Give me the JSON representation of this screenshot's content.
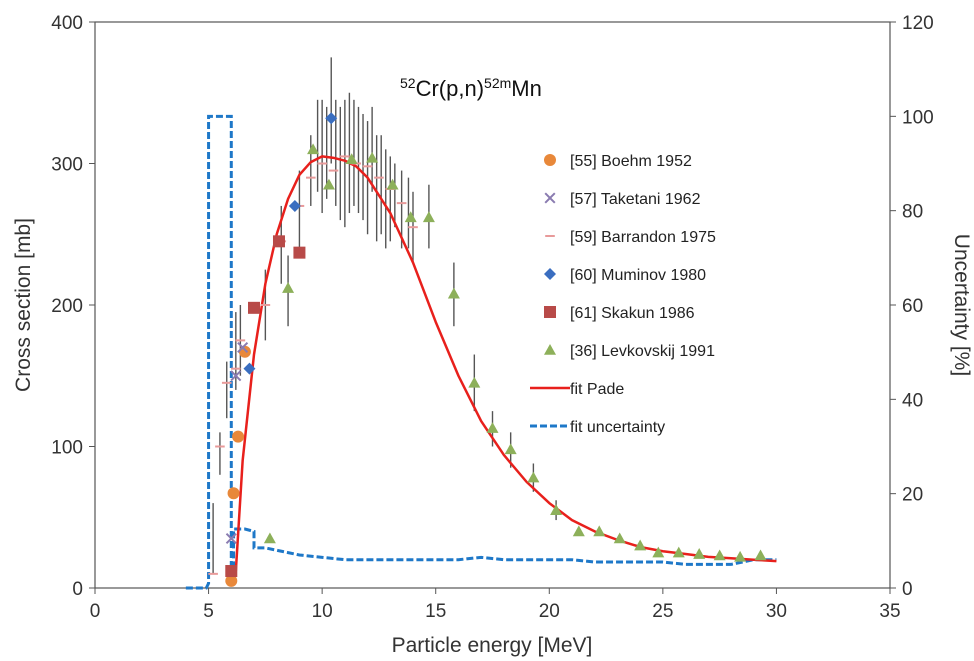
{
  "chart_data": {
    "type": "scatter",
    "title_parts": [
      {
        "text": "52",
        "sup": true
      },
      {
        "text": "Cr(p,n)",
        "sup": false
      },
      {
        "text": "52m",
        "sup": true
      },
      {
        "text": "Mn",
        "sup": false
      }
    ],
    "xlabel": "Particle  energy [MeV]",
    "ylabel": "Cross section [mb]",
    "y2label": "Uncertainty [%]",
    "xlim": [
      0,
      35
    ],
    "ylim": [
      0,
      400
    ],
    "y2lim": [
      0,
      120
    ],
    "xticks": [
      "0",
      "5",
      "10",
      "15",
      "20",
      "25",
      "30",
      "35"
    ],
    "yticks": [
      "0",
      "100",
      "200",
      "300",
      "400"
    ],
    "y2ticks": [
      "0",
      "20",
      "40",
      "60",
      "80",
      "100",
      "120"
    ],
    "grid": false,
    "legend_position": "right",
    "colors": {
      "boehm": "#E8883A",
      "taketani": "#8A7BB0",
      "barrandon": "#E89A9A",
      "muminov": "#3A6EC0",
      "skakun": "#B84A48",
      "levkovskij": "#8DB05A",
      "fit": "#E8201C",
      "uncertainty": "#1E78C8",
      "errorbar": "#555555"
    },
    "series": [
      {
        "name": "[55] Boehm 1952",
        "key": "boehm",
        "marker": "circle",
        "points": [
          [
            6.0,
            5
          ],
          [
            6.1,
            67
          ],
          [
            6.3,
            107
          ],
          [
            6.6,
            167
          ]
        ]
      },
      {
        "name": "[57] Taketani 1962",
        "key": "taketani",
        "marker": "x",
        "points": [
          [
            6.0,
            35
          ],
          [
            6.2,
            150
          ],
          [
            6.5,
            170
          ]
        ]
      },
      {
        "name": "[59] Barrandon 1975",
        "key": "barrandon",
        "marker": "dash",
        "points": [
          [
            5.2,
            10
          ],
          [
            5.5,
            100
          ],
          [
            5.8,
            145
          ],
          [
            6.2,
            155
          ],
          [
            6.4,
            175
          ],
          [
            7.5,
            200
          ],
          [
            8.2,
            245
          ],
          [
            9.0,
            270
          ],
          [
            9.5,
            290
          ],
          [
            10.0,
            300
          ],
          [
            10.5,
            295
          ],
          [
            11.0,
            305
          ],
          [
            11.5,
            300
          ],
          [
            12.0,
            298
          ],
          [
            12.5,
            290
          ],
          [
            13.0,
            282
          ],
          [
            13.5,
            272
          ],
          [
            14.0,
            255
          ]
        ]
      },
      {
        "name": "[60] Muminov 1980",
        "key": "muminov",
        "marker": "diamond",
        "points": [
          [
            6.8,
            155
          ],
          [
            8.8,
            270
          ],
          [
            10.4,
            332
          ]
        ]
      },
      {
        "name": "[61] Skakun 1986",
        "key": "skakun",
        "marker": "square",
        "points": [
          [
            6.0,
            12
          ],
          [
            7.0,
            198
          ],
          [
            8.1,
            245
          ],
          [
            9.0,
            237
          ]
        ]
      },
      {
        "name": "[36] Levkovskij 1991",
        "key": "levkovskij",
        "marker": "triangle",
        "points": [
          [
            7.7,
            35
          ],
          [
            8.5,
            212
          ],
          [
            9.6,
            310
          ],
          [
            10.3,
            285
          ],
          [
            11.3,
            303
          ],
          [
            12.2,
            304
          ],
          [
            13.1,
            285
          ],
          [
            13.9,
            262
          ],
          [
            14.7,
            262
          ],
          [
            15.8,
            208
          ],
          [
            16.7,
            145
          ],
          [
            17.5,
            113
          ],
          [
            18.3,
            98
          ],
          [
            19.3,
            78
          ],
          [
            20.3,
            55
          ],
          [
            21.3,
            40
          ],
          [
            22.2,
            40
          ],
          [
            23.1,
            35
          ],
          [
            24.0,
            30
          ],
          [
            24.8,
            25
          ],
          [
            25.7,
            25
          ],
          [
            26.6,
            24
          ],
          [
            27.5,
            23
          ],
          [
            28.4,
            22
          ],
          [
            29.3,
            23
          ]
        ]
      }
    ],
    "fit": {
      "name": "fit Pade",
      "key": "fit",
      "x": [
        6.2,
        6.5,
        7,
        7.5,
        8,
        8.5,
        9,
        9.5,
        10,
        10.5,
        11,
        11.5,
        12,
        13,
        14,
        15,
        16,
        17,
        18,
        19,
        20,
        21,
        22,
        23,
        24,
        25,
        26,
        27,
        28,
        29,
        30
      ],
      "y": [
        12,
        90,
        165,
        215,
        250,
        275,
        292,
        301,
        305,
        304,
        302,
        298,
        290,
        265,
        230,
        188,
        150,
        118,
        94,
        75,
        60,
        48,
        40,
        34,
        29,
        26,
        24,
        22,
        21,
        20,
        19
      ]
    },
    "uncertainty": {
      "name": "fit uncertainty",
      "key": "uncertainty",
      "x": [
        4.0,
        4.5,
        4.9,
        5.0,
        5.0,
        5.9,
        5.9,
        6.0,
        6.0,
        6.1,
        6.1,
        6.6,
        6.6,
        7.0,
        7.0,
        7.5,
        8.0,
        8.5,
        9.0,
        10.0,
        11.0,
        12.0,
        13.0,
        14.0,
        15.0,
        16.0,
        17.0,
        18.0,
        19.0,
        20.0,
        21.0,
        22.0,
        23.0,
        24.0,
        25.0,
        26.0,
        27.0,
        28.0,
        29.0,
        30.0
      ],
      "y": [
        0,
        0,
        0,
        1,
        100,
        100,
        100,
        100,
        2,
        2,
        12.5,
        12.5,
        12.5,
        12,
        8.5,
        8.5,
        8,
        7.5,
        7,
        6.5,
        6,
        6,
        6,
        6,
        6,
        6,
        6.5,
        6,
        6,
        6,
        6,
        5.5,
        5.5,
        5.5,
        5.5,
        5,
        5,
        5,
        6,
        6
      ]
    },
    "error_bars": [
      [
        5.2,
        10,
        60
      ],
      [
        5.5,
        80,
        110
      ],
      [
        5.8,
        120,
        160
      ],
      [
        6.2,
        140,
        195
      ],
      [
        6.4,
        150,
        200
      ],
      [
        7.5,
        175,
        225
      ],
      [
        8.2,
        215,
        270
      ],
      [
        8.5,
        185,
        235
      ],
      [
        9.0,
        240,
        295
      ],
      [
        9.5,
        270,
        320
      ],
      [
        9.8,
        280,
        345
      ],
      [
        10.0,
        265,
        345
      ],
      [
        10.2,
        275,
        340
      ],
      [
        10.4,
        300,
        375
      ],
      [
        10.6,
        270,
        345
      ],
      [
        10.8,
        260,
        340
      ],
      [
        11.0,
        255,
        345
      ],
      [
        11.2,
        265,
        350
      ],
      [
        11.4,
        270,
        345
      ],
      [
        11.6,
        265,
        340
      ],
      [
        11.8,
        260,
        335
      ],
      [
        12.0,
        250,
        330
      ],
      [
        12.2,
        280,
        340
      ],
      [
        12.4,
        245,
        320
      ],
      [
        12.6,
        250,
        320
      ],
      [
        12.8,
        240,
        310
      ],
      [
        13.0,
        245,
        305
      ],
      [
        13.2,
        255,
        300
      ],
      [
        13.5,
        240,
        295
      ],
      [
        13.8,
        240,
        290
      ],
      [
        14.0,
        230,
        280
      ],
      [
        14.7,
        240,
        285
      ],
      [
        15.8,
        185,
        230
      ],
      [
        16.7,
        125,
        165
      ],
      [
        17.5,
        100,
        125
      ],
      [
        18.3,
        85,
        110
      ],
      [
        19.3,
        68,
        88
      ],
      [
        20.3,
        48,
        62
      ]
    ]
  }
}
